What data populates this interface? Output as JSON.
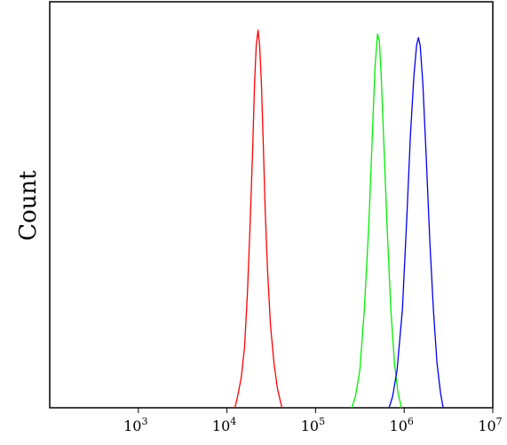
{
  "chart_data": {
    "type": "line",
    "title": "",
    "xlabel": "",
    "ylabel": "Count",
    "x_scale": "log",
    "xlim": [
      100,
      10000000
    ],
    "ylim": [
      0,
      1
    ],
    "grid": false,
    "legend": "none",
    "x_ticks": [
      {
        "base": "10",
        "exp": "3",
        "value": 1000
      },
      {
        "base": "10",
        "exp": "4",
        "value": 10000
      },
      {
        "base": "10",
        "exp": "5",
        "value": 100000
      },
      {
        "base": "10",
        "exp": "6",
        "value": 1000000
      },
      {
        "base": "10",
        "exp": "7",
        "value": 10000000
      }
    ],
    "series": [
      {
        "color": "#ff0000",
        "points": [
          [
            12300,
            0
          ],
          [
            13200,
            0.03
          ],
          [
            14500,
            0.08
          ],
          [
            15800,
            0.16
          ],
          [
            17000,
            0.3
          ],
          [
            18200,
            0.48
          ],
          [
            19500,
            0.68
          ],
          [
            20500,
            0.86
          ],
          [
            21400,
            0.96
          ],
          [
            22400,
            1.0
          ],
          [
            23400,
            0.96
          ],
          [
            24500,
            0.86
          ],
          [
            25700,
            0.7
          ],
          [
            27000,
            0.52
          ],
          [
            28800,
            0.36
          ],
          [
            31000,
            0.22
          ],
          [
            33900,
            0.12
          ],
          [
            37200,
            0.05
          ],
          [
            41700,
            0
          ]
        ]
      },
      {
        "color": "#00ee00",
        "points": [
          [
            257000,
            0
          ],
          [
            282000,
            0.03
          ],
          [
            316000,
            0.1
          ],
          [
            355000,
            0.26
          ],
          [
            398000,
            0.48
          ],
          [
            437000,
            0.72
          ],
          [
            468000,
            0.9
          ],
          [
            501000,
            0.99
          ],
          [
            525000,
            0.97
          ],
          [
            550000,
            0.88
          ],
          [
            589000,
            0.7
          ],
          [
            646000,
            0.46
          ],
          [
            708000,
            0.26
          ],
          [
            776000,
            0.12
          ],
          [
            851000,
            0.04
          ],
          [
            933000,
            0
          ]
        ]
      },
      {
        "color": "#0000ee",
        "points": [
          [
            676000,
            0
          ],
          [
            741000,
            0.03
          ],
          [
            832000,
            0.1
          ],
          [
            955000,
            0.26
          ],
          [
            1070000,
            0.5
          ],
          [
            1175000,
            0.72
          ],
          [
            1288000,
            0.88
          ],
          [
            1380000,
            0.96
          ],
          [
            1445000,
            0.98
          ],
          [
            1514000,
            0.96
          ],
          [
            1622000,
            0.86
          ],
          [
            1778000,
            0.66
          ],
          [
            1950000,
            0.44
          ],
          [
            2138000,
            0.26
          ],
          [
            2344000,
            0.12
          ],
          [
            2570000,
            0.04
          ],
          [
            2754000,
            0
          ]
        ]
      }
    ]
  }
}
